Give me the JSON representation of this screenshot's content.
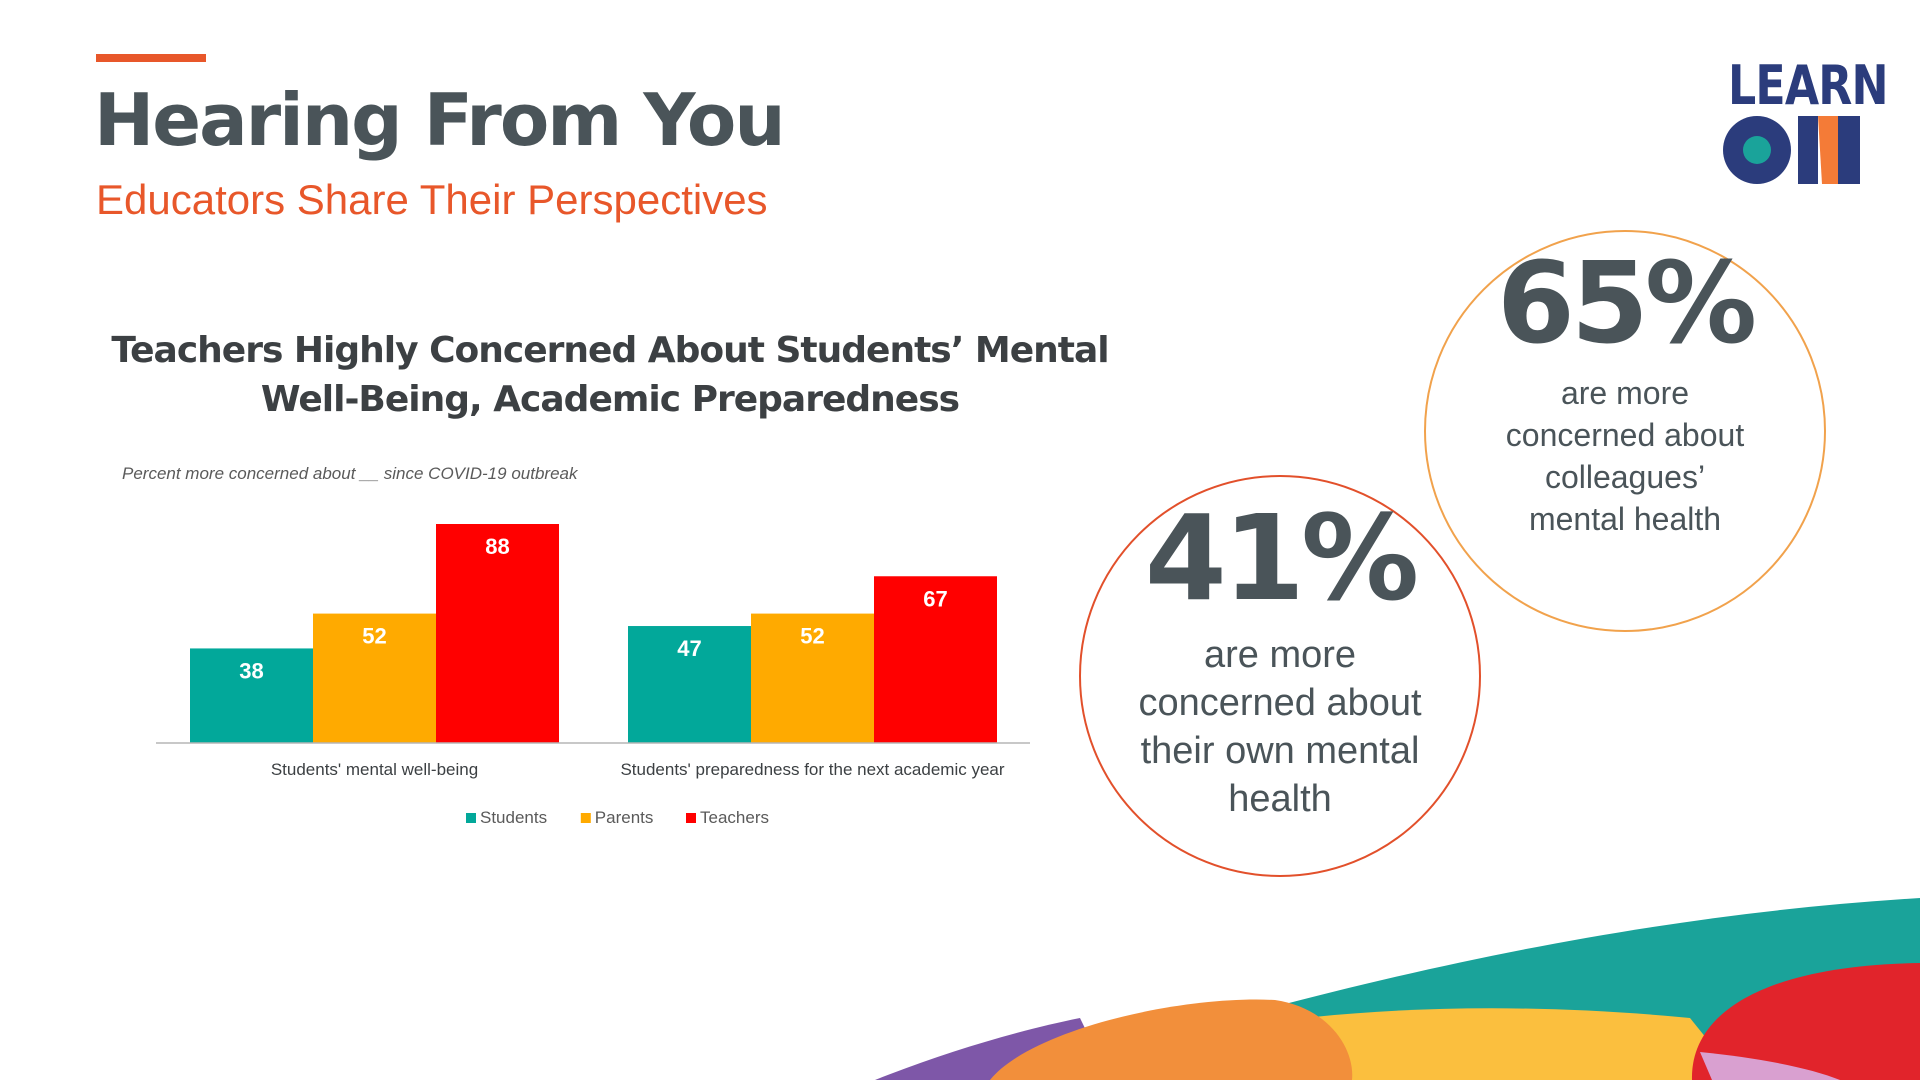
{
  "header": {
    "title": "Hearing From You",
    "subtitle": "Educators Share Their Perspectives",
    "accent_color": "#e8572a"
  },
  "logo": {
    "word": "LEARN",
    "mark_word": "ON",
    "colors": {
      "navy": "#2b3c7c",
      "teal": "#1aa39a",
      "orange": "#f47b37"
    }
  },
  "chart_data": {
    "type": "bar",
    "title": "Teachers Highly Concerned About Students’ Mental Well-Being, Academic Preparedness",
    "note": "Percent more concerned about __ since COVID-19 outbreak",
    "categories": [
      "Students' mental well-being",
      "Students' preparedness for the next academic year"
    ],
    "series": [
      {
        "name": "Students",
        "color": "#02a89a",
        "values": [
          38,
          47
        ]
      },
      {
        "name": "Parents",
        "color": "#ffaa00",
        "values": [
          52,
          52
        ]
      },
      {
        "name": "Teachers",
        "color": "#ff0000",
        "values": [
          88,
          67
        ]
      }
    ],
    "ylim": [
      0,
      88
    ],
    "grid": false,
    "legend": "bottom-center",
    "data_labels": true
  },
  "stats": [
    {
      "value": "65%",
      "text": "are more concerned about colleagues’ mental health"
    },
    {
      "value": "41%",
      "text": "are more concerned about their own mental health"
    }
  ],
  "decoration_colors": [
    "#1aa39a",
    "#fbbf3e",
    "#f28f3b",
    "#7e57a8",
    "#e1242b",
    "#d9a0d0"
  ]
}
